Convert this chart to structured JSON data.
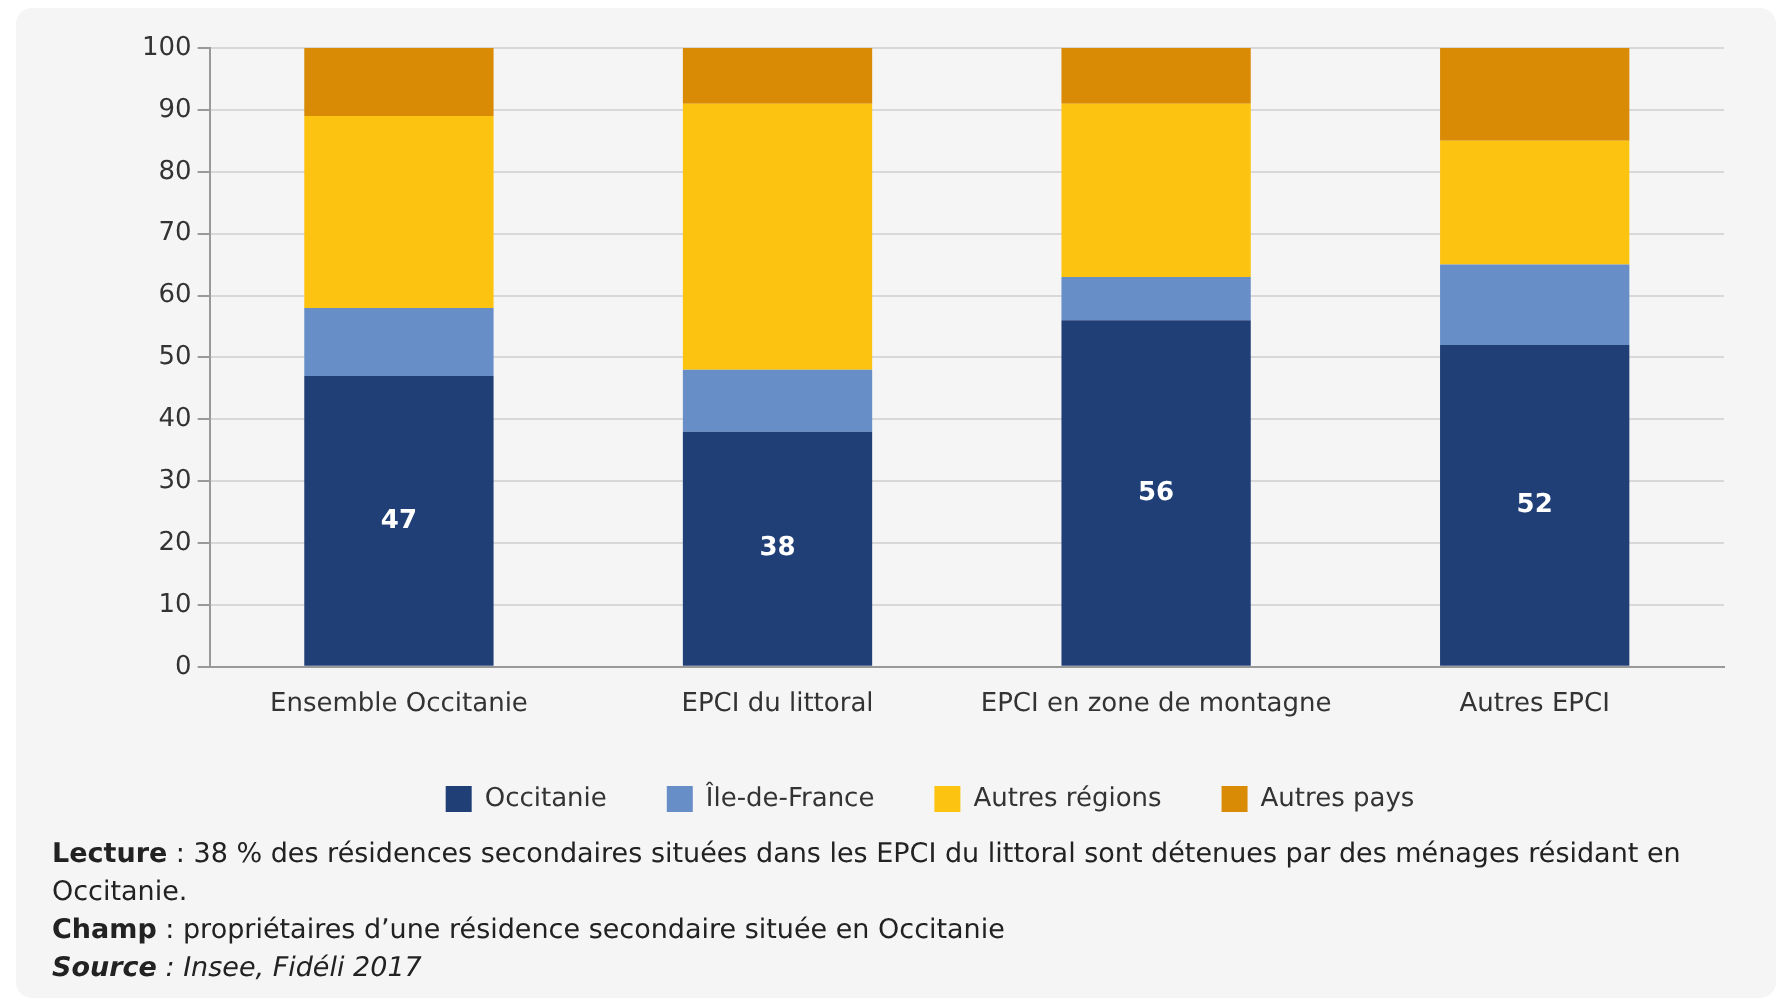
{
  "chart_data": {
    "type": "bar",
    "stacked": true,
    "categories": [
      "Ensemble Occitanie",
      "EPCI du littoral",
      "EPCI en zone de montagne",
      "Autres EPCI"
    ],
    "series": [
      {
        "name": "Occitanie",
        "color": "#203f77",
        "values": [
          47,
          38,
          56,
          52
        ],
        "value_labels": [
          "47",
          "38",
          "56",
          "52"
        ]
      },
      {
        "name": "Île-de-France",
        "color": "#678ec6",
        "values": [
          11,
          10,
          7,
          13
        ]
      },
      {
        "name": "Autres régions",
        "color": "#fcc310",
        "values": [
          31,
          43,
          28,
          20
        ]
      },
      {
        "name": "Autres pays",
        "color": "#d98b06",
        "values": [
          11,
          9,
          9,
          15
        ]
      }
    ],
    "ylim": [
      0,
      100
    ],
    "yticks": [
      0,
      10,
      20,
      30,
      40,
      50,
      60,
      70,
      80,
      90,
      100
    ],
    "grid": "y",
    "legend": "bottom",
    "annotations": [
      "Lecture : 38 % des résidences secondaires situées dans les EPCI du littoral sont détenues par des ménages résidant en Occitanie.",
      "Champ : propriétaires d’une résidence secondaire située en Occitanie",
      "Source : Insee, Fidéli 2017"
    ]
  }
}
